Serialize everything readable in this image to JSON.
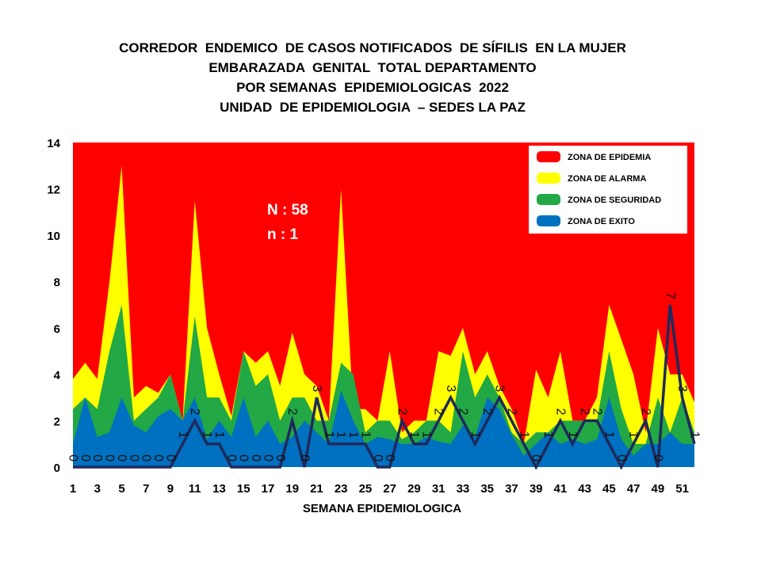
{
  "title_lines": [
    "CORREDOR  ENDEMICO  DE CASOS NOTIFICADOS  DE SÍFILIS  EN LA MUJER",
    "EMBARAZADA  GENITAL  TOTAL DEPARTAMENTO",
    "POR SEMANAS  EPIDEMIOLOGICAS  2022",
    "UNIDAD  DE EPIDEMIOLOGIA  – SEDES LA PAZ"
  ],
  "annotations": {
    "N": "N : 58",
    "n": "n : 1"
  },
  "colors": {
    "epidemia": "#ff0000",
    "alarma": "#ffff00",
    "seguridad": "#22a845",
    "exito": "#0070c0",
    "line": "#1f2a5c"
  },
  "chart_data": {
    "type": "area",
    "title": "CORREDOR  ENDEMICO  DE CASOS NOTIFICADOS  DE SÍFILIS  EN LA MUJER EMBARAZADA  GENITAL  TOTAL DEPARTAMENTO POR SEMANAS  EPIDEMIOLOGICAS  2022",
    "subtitle": "UNIDAD  DE EPIDEMIOLOGIA  – SEDES LA PAZ",
    "xlabel": "SEMANA EPIDEMIOLOGICA",
    "ylabel": "",
    "ylim": [
      0,
      14
    ],
    "yticks": [
      0,
      2,
      4,
      6,
      8,
      10,
      12,
      14
    ],
    "x": [
      1,
      2,
      3,
      4,
      5,
      6,
      7,
      8,
      9,
      10,
      11,
      12,
      13,
      14,
      15,
      16,
      17,
      18,
      19,
      20,
      21,
      22,
      23,
      24,
      25,
      26,
      27,
      28,
      29,
      30,
      31,
      32,
      33,
      34,
      35,
      36,
      37,
      38,
      39,
      40,
      41,
      42,
      43,
      44,
      45,
      46,
      47,
      48,
      49,
      50,
      51,
      52
    ],
    "xtick_labels": [
      "1",
      "3",
      "5",
      "7",
      "9",
      "11",
      "13",
      "15",
      "17",
      "19",
      "21",
      "23",
      "25",
      "27",
      "29",
      "31",
      "33",
      "35",
      "37",
      "39",
      "41",
      "43",
      "45",
      "47",
      "49",
      "51"
    ],
    "legend_position": "top-right",
    "series": [
      {
        "name": "ZONA DE EPIDEMIA",
        "kind": "band",
        "values": [
          14,
          14,
          14,
          14,
          14,
          14,
          14,
          14,
          14,
          14,
          14,
          14,
          14,
          14,
          14,
          14,
          14,
          14,
          14,
          14,
          14,
          14,
          14,
          14,
          14,
          14,
          14,
          14,
          14,
          14,
          14,
          14,
          14,
          14,
          14,
          14,
          14,
          14,
          14,
          14,
          14,
          14,
          14,
          14,
          14,
          14,
          14,
          14,
          14,
          14,
          14,
          14
        ]
      },
      {
        "name": "ZONA DE ALARMA",
        "kind": "band",
        "values": [
          3.8,
          4.5,
          3.8,
          8,
          13,
          3,
          3.5,
          3.2,
          4,
          2,
          11.5,
          6,
          4,
          2.2,
          5,
          4.5,
          5,
          3.5,
          5.8,
          4,
          3.5,
          2,
          12,
          2.5,
          2.5,
          2,
          5,
          1.5,
          2,
          2,
          5,
          4.8,
          6,
          4,
          5,
          3.5,
          2.5,
          1,
          4.2,
          3,
          5,
          2,
          2,
          3,
          7,
          5.5,
          4,
          1.5,
          6,
          4,
          4,
          2.8
        ]
      },
      {
        "name": "ZONA DE  SEGURIDAD",
        "kind": "band",
        "values": [
          2.5,
          3,
          2.5,
          5,
          7,
          2,
          2.5,
          3,
          4,
          2,
          6.5,
          3,
          3,
          2,
          5,
          3.5,
          4,
          2,
          3,
          3,
          2,
          2,
          4.5,
          4,
          1.5,
          2,
          2,
          1.2,
          1.5,
          2,
          2,
          1.5,
          5,
          3,
          4,
          3,
          1.5,
          1,
          1.5,
          1.5,
          2,
          2,
          2,
          2,
          5,
          2.5,
          1,
          1,
          3,
          1.5,
          3,
          1.5
        ]
      },
      {
        "name": "ZONA DE  EXITO",
        "kind": "band",
        "values": [
          1,
          3,
          1.3,
          1.5,
          3,
          1.8,
          1.5,
          2.2,
          2.5,
          2,
          3,
          1.2,
          2,
          1.3,
          3,
          1.3,
          2,
          1,
          1.3,
          2,
          1.5,
          1,
          3.3,
          2,
          1,
          1.3,
          1.2,
          1,
          1,
          1.3,
          1.1,
          1,
          1.8,
          1.3,
          3,
          2.5,
          1.4,
          0.5,
          1,
          1.5,
          1,
          1.2,
          1,
          1.2,
          3,
          1.2,
          0.5,
          1,
          1,
          1.5,
          1,
          1
        ]
      },
      {
        "name": "",
        "kind": "line",
        "values": [
          0,
          0,
          0,
          0,
          0,
          0,
          0,
          0,
          0,
          1,
          2,
          1,
          1,
          0,
          0,
          0,
          0,
          0,
          2,
          0,
          3,
          1,
          1,
          1,
          1,
          0,
          0,
          2,
          1,
          1,
          2,
          3,
          2,
          1,
          2,
          3,
          2,
          1,
          0,
          1,
          2,
          1,
          2,
          2,
          1,
          0,
          1,
          2,
          0,
          7,
          3,
          1
        ]
      }
    ],
    "line_labels": [
      "0",
      "0",
      "0",
      "0",
      "0",
      "0",
      "0",
      "0",
      "0",
      "1",
      "2",
      "1",
      "1",
      "0",
      "0",
      "0",
      "0",
      "0",
      "2",
      "0",
      "3",
      "1",
      "1",
      "1",
      "1",
      "0",
      "0",
      "2",
      "1",
      "1",
      "2",
      "3",
      "2",
      "1",
      "2",
      "3",
      "2",
      "1",
      "0",
      "1",
      "2",
      "1",
      "2",
      "2",
      "1",
      "0",
      "1",
      "2",
      "0",
      "7",
      "3",
      "1"
    ]
  }
}
